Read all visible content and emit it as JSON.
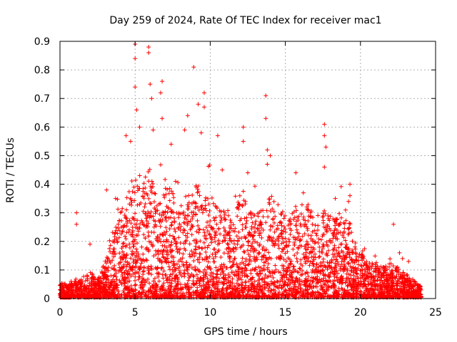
{
  "chart_data": {
    "type": "scatter",
    "title": "Day 259 of 2024, Rate Of TEC Index for receiver mac1",
    "xlabel": "GPS time / hours",
    "ylabel": "ROTI / TECUs",
    "xlim": [
      0,
      25
    ],
    "ylim": [
      0,
      0.9
    ],
    "x_ticks": [
      "0",
      "5",
      "10",
      "15",
      "20",
      "25"
    ],
    "y_ticks": [
      "0",
      "0.1",
      "0.2",
      "0.3",
      "0.4",
      "0.5",
      "0.6",
      "0.7",
      "0.8",
      "0.9"
    ],
    "grid": true,
    "marker": "+",
    "series_color": "#ff0000",
    "envelope": {
      "x": [
        0,
        0.5,
        1,
        1.5,
        2,
        2.5,
        3,
        3.5,
        4,
        4.5,
        5,
        5.5,
        6,
        6.5,
        7,
        7.5,
        8,
        8.5,
        9,
        9.5,
        10,
        10.5,
        11,
        11.5,
        12,
        12.5,
        13,
        13.5,
        14,
        14.5,
        15,
        15.5,
        16,
        16.5,
        17,
        17.5,
        18,
        18.5,
        19,
        19.5,
        20,
        20.5,
        21,
        21.5,
        22,
        22.5,
        23,
        23.5,
        24
      ],
      "typical_max": [
        0.05,
        0.04,
        0.06,
        0.07,
        0.09,
        0.06,
        0.12,
        0.2,
        0.28,
        0.35,
        0.42,
        0.38,
        0.45,
        0.3,
        0.4,
        0.35,
        0.3,
        0.35,
        0.38,
        0.32,
        0.35,
        0.3,
        0.3,
        0.25,
        0.35,
        0.3,
        0.28,
        0.3,
        0.35,
        0.3,
        0.28,
        0.3,
        0.32,
        0.3,
        0.28,
        0.3,
        0.28,
        0.26,
        0.3,
        0.22,
        0.15,
        0.12,
        0.12,
        0.1,
        0.12,
        0.1,
        0.08,
        0.06,
        0.04
      ]
    },
    "peaks": [
      {
        "x": 1.1,
        "y": 0.3
      },
      {
        "x": 1.1,
        "y": 0.26
      },
      {
        "x": 2.0,
        "y": 0.19
      },
      {
        "x": 3.1,
        "y": 0.38
      },
      {
        "x": 3.7,
        "y": 0.35
      },
      {
        "x": 4.4,
        "y": 0.57
      },
      {
        "x": 4.7,
        "y": 0.55
      },
      {
        "x": 5.0,
        "y": 0.89
      },
      {
        "x": 5.0,
        "y": 0.84
      },
      {
        "x": 5.0,
        "y": 0.74
      },
      {
        "x": 5.1,
        "y": 0.66
      },
      {
        "x": 5.3,
        "y": 0.6
      },
      {
        "x": 5.9,
        "y": 0.88
      },
      {
        "x": 5.9,
        "y": 0.86
      },
      {
        "x": 6.0,
        "y": 0.75
      },
      {
        "x": 6.1,
        "y": 0.7
      },
      {
        "x": 6.2,
        "y": 0.59
      },
      {
        "x": 6.8,
        "y": 0.76
      },
      {
        "x": 6.7,
        "y": 0.72
      },
      {
        "x": 6.8,
        "y": 0.63
      },
      {
        "x": 7.4,
        "y": 0.54
      },
      {
        "x": 8.3,
        "y": 0.59
      },
      {
        "x": 8.5,
        "y": 0.64
      },
      {
        "x": 8.9,
        "y": 0.81
      },
      {
        "x": 9.2,
        "y": 0.68
      },
      {
        "x": 9.4,
        "y": 0.58
      },
      {
        "x": 9.6,
        "y": 0.72
      },
      {
        "x": 9.6,
        "y": 0.67
      },
      {
        "x": 10.5,
        "y": 0.57
      },
      {
        "x": 10.8,
        "y": 0.45
      },
      {
        "x": 12.2,
        "y": 0.6
      },
      {
        "x": 12.2,
        "y": 0.55
      },
      {
        "x": 12.5,
        "y": 0.44
      },
      {
        "x": 13.7,
        "y": 0.71
      },
      {
        "x": 13.7,
        "y": 0.63
      },
      {
        "x": 13.8,
        "y": 0.52
      },
      {
        "x": 14.0,
        "y": 0.5
      },
      {
        "x": 13.8,
        "y": 0.47
      },
      {
        "x": 15.7,
        "y": 0.44
      },
      {
        "x": 16.2,
        "y": 0.37
      },
      {
        "x": 17.6,
        "y": 0.61
      },
      {
        "x": 17.6,
        "y": 0.57
      },
      {
        "x": 17.7,
        "y": 0.53
      },
      {
        "x": 17.6,
        "y": 0.46
      },
      {
        "x": 19.3,
        "y": 0.4
      },
      {
        "x": 19.3,
        "y": 0.36
      },
      {
        "x": 22.2,
        "y": 0.26
      },
      {
        "x": 22.6,
        "y": 0.16
      },
      {
        "x": 22.8,
        "y": 0.14
      },
      {
        "x": 23.2,
        "y": 0.13
      }
    ]
  }
}
